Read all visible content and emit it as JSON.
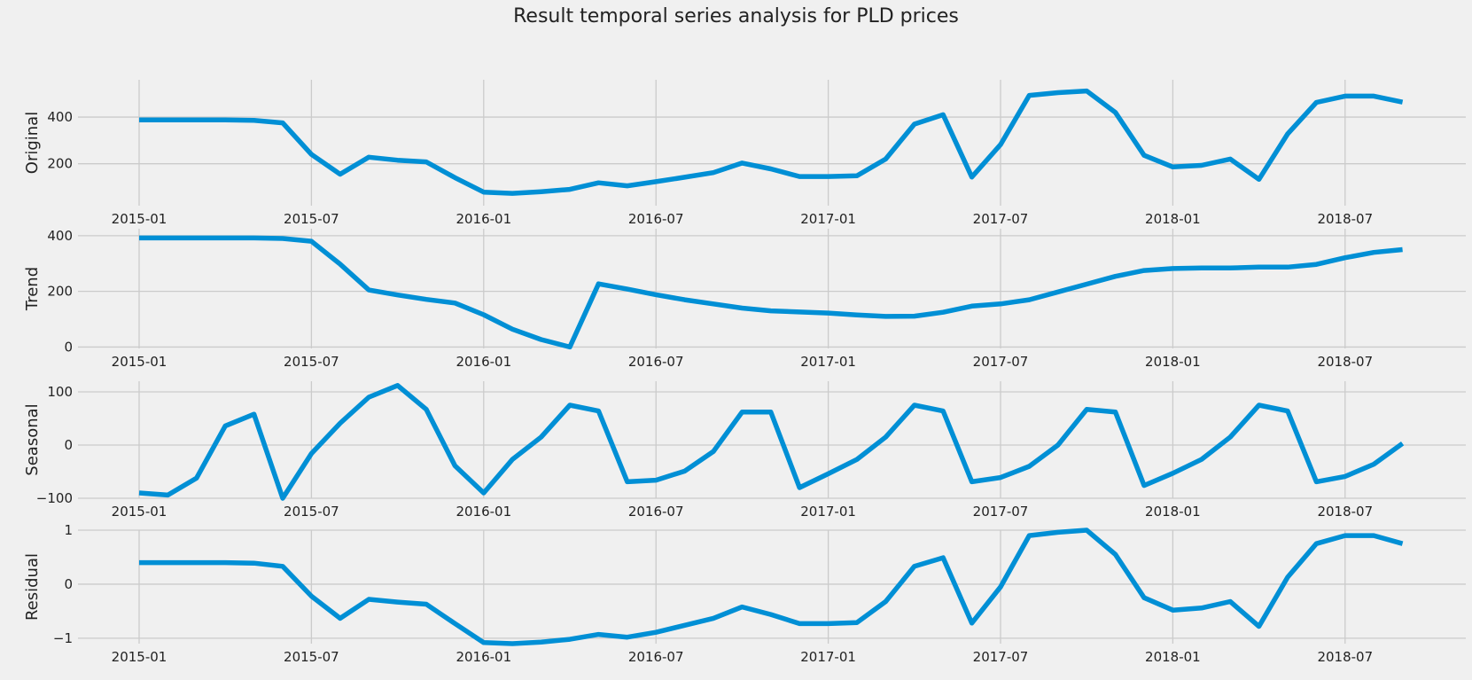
{
  "figure": {
    "title": "Result temporal series analysis for PLD prices"
  },
  "chart_data": [
    {
      "type": "line",
      "ylabel": "Original",
      "ylim": [
        20,
        560
      ],
      "yticks": [
        200,
        400
      ],
      "xticks": [
        "2015-01",
        "2015-07",
        "2016-01",
        "2016-07",
        "2017-01",
        "2017-07",
        "2018-01",
        "2018-07"
      ],
      "grid": true,
      "x": [
        "2015-01",
        "2015-02",
        "2015-03",
        "2015-04",
        "2015-05",
        "2015-06",
        "2015-07",
        "2015-08",
        "2015-09",
        "2015-10",
        "2015-11",
        "2015-12",
        "2016-01",
        "2016-02",
        "2016-03",
        "2016-04",
        "2016-05",
        "2016-06",
        "2016-07",
        "2016-08",
        "2016-09",
        "2016-10",
        "2016-11",
        "2016-12",
        "2017-01",
        "2017-02",
        "2017-03",
        "2017-04",
        "2017-05",
        "2017-06",
        "2017-07",
        "2017-08",
        "2017-09",
        "2017-10",
        "2017-11",
        "2017-12",
        "2018-01",
        "2018-02",
        "2018-03",
        "2018-04",
        "2018-05",
        "2018-06",
        "2018-07",
        "2018-08",
        "2018-09"
      ],
      "values": [
        388,
        388,
        388,
        388,
        386,
        375,
        240,
        155,
        228,
        215,
        208,
        140,
        78,
        73,
        80,
        90,
        118,
        105,
        123,
        142,
        162,
        203,
        178,
        145,
        145,
        148,
        220,
        370,
        410,
        143,
        282,
        493,
        505,
        512,
        420,
        236,
        186,
        193,
        220,
        133,
        328,
        463,
        490,
        490,
        464
      ]
    },
    {
      "type": "line",
      "ylabel": "Trend",
      "ylim": [
        -5,
        425
      ],
      "yticks": [
        0,
        200,
        400
      ],
      "xticks": [
        "2015-01",
        "2015-07",
        "2016-01",
        "2016-07",
        "2017-01",
        "2017-07",
        "2018-01",
        "2018-07"
      ],
      "grid": true,
      "x": [
        "2015-01",
        "2015-02",
        "2015-03",
        "2015-04",
        "2015-05",
        "2015-06",
        "2015-07",
        "2015-08",
        "2015-09",
        "2015-10",
        "2015-11",
        "2015-12",
        "2016-01",
        "2016-02",
        "2016-03",
        "2016-04",
        "2016-05",
        "2016-06",
        "2016-07",
        "2016-08",
        "2016-09",
        "2016-10",
        "2016-11",
        "2016-12",
        "2017-01",
        "2017-02",
        "2017-03",
        "2017-04",
        "2017-05",
        "2017-06",
        "2017-07",
        "2017-08",
        "2017-09",
        "2017-10",
        "2017-11",
        "2017-12",
        "2018-01",
        "2018-02",
        "2018-03",
        "2018-04",
        "2018-05",
        "2018-06",
        "2018-07",
        "2018-08",
        "2018-09"
      ],
      "values": [
        392,
        392,
        392,
        392,
        392,
        390,
        380,
        298,
        205,
        187,
        171,
        158,
        116,
        64,
        27,
        0,
        227,
        208,
        188,
        170,
        155,
        140,
        130,
        126,
        122,
        115,
        110,
        111,
        125,
        147,
        155,
        170,
        198,
        226,
        254,
        275,
        282,
        284,
        284,
        287,
        287,
        297,
        321,
        340,
        350
      ]
    },
    {
      "type": "line",
      "ylabel": "Seasonal",
      "ylim": [
        -100,
        120
      ],
      "yticks": [
        -100,
        0,
        100
      ],
      "xticks": [
        "2015-01",
        "2015-07",
        "2016-01",
        "2016-07",
        "2017-01",
        "2017-07",
        "2018-01",
        "2018-07"
      ],
      "grid": true,
      "x": [
        "2015-01",
        "2015-02",
        "2015-03",
        "2015-04",
        "2015-05",
        "2015-06",
        "2015-07",
        "2015-08",
        "2015-09",
        "2015-10",
        "2015-11",
        "2015-12",
        "2016-01",
        "2016-02",
        "2016-03",
        "2016-04",
        "2016-05",
        "2016-06",
        "2016-07",
        "2016-08",
        "2016-09",
        "2016-10",
        "2016-11",
        "2016-12",
        "2017-01",
        "2017-02",
        "2017-03",
        "2017-04",
        "2017-05",
        "2017-06",
        "2017-07",
        "2017-08",
        "2017-09",
        "2017-10",
        "2017-11",
        "2017-12",
        "2018-01",
        "2018-02",
        "2018-03",
        "2018-04",
        "2018-05",
        "2018-06",
        "2018-07",
        "2018-08",
        "2018-09"
      ],
      "values": [
        -90,
        -94,
        -62,
        36,
        58,
        -100,
        -16,
        41,
        90,
        112,
        67,
        -39,
        -90,
        -27,
        15,
        75,
        64,
        -69,
        -66,
        -49,
        -12,
        62,
        62,
        -80,
        -54,
        -27,
        15,
        75,
        64,
        -69,
        -61,
        -40,
        0,
        67,
        62,
        -76,
        -53,
        -27,
        15,
        75,
        64,
        -69,
        -59,
        -36,
        3
      ]
    },
    {
      "type": "line",
      "ylabel": "Residual",
      "ylim": [
        -1.1,
        1.0
      ],
      "yticks": [
        -1,
        0,
        1
      ],
      "xticks": [
        "2015-01",
        "2015-07",
        "2016-01",
        "2016-07",
        "2017-01",
        "2017-07",
        "2018-01",
        "2018-07"
      ],
      "grid": true,
      "x": [
        "2015-01",
        "2015-02",
        "2015-03",
        "2015-04",
        "2015-05",
        "2015-06",
        "2015-07",
        "2015-08",
        "2015-09",
        "2015-10",
        "2015-11",
        "2015-12",
        "2016-01",
        "2016-02",
        "2016-03",
        "2016-04",
        "2016-05",
        "2016-06",
        "2016-07",
        "2016-08",
        "2016-09",
        "2016-10",
        "2016-11",
        "2016-12",
        "2017-01",
        "2017-02",
        "2017-03",
        "2017-04",
        "2017-05",
        "2017-06",
        "2017-07",
        "2017-08",
        "2017-09",
        "2017-10",
        "2017-11",
        "2017-12",
        "2018-01",
        "2018-02",
        "2018-03",
        "2018-04",
        "2018-05",
        "2018-06",
        "2018-07",
        "2018-08",
        "2018-09"
      ],
      "values": [
        0.4,
        0.4,
        0.4,
        0.4,
        0.39,
        0.33,
        -0.22,
        -0.63,
        -0.28,
        -0.33,
        -0.37,
        -0.73,
        -1.08,
        -1.1,
        -1.07,
        -1.02,
        -0.93,
        -0.98,
        -0.89,
        -0.76,
        -0.63,
        -0.42,
        -0.56,
        -0.73,
        -0.73,
        -0.71,
        -0.32,
        0.33,
        0.49,
        -0.72,
        -0.05,
        0.9,
        0.96,
        1.0,
        0.55,
        -0.25,
        -0.48,
        -0.44,
        -0.32,
        -0.78,
        0.13,
        0.75,
        0.9,
        0.9,
        0.75
      ]
    }
  ],
  "colors": {
    "line": "#008fd5",
    "grid": "#cbcbcb",
    "background": "#f0f0f0",
    "text": "#222222"
  }
}
